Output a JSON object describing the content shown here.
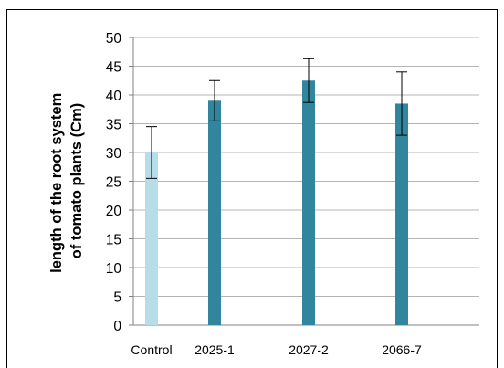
{
  "chart_data": {
    "type": "bar",
    "categories": [
      "Control",
      "2025-1",
      "2027-2",
      "2066-7"
    ],
    "values": [
      30,
      39,
      42.5,
      38.5
    ],
    "error_bars": [
      4.5,
      3.5,
      3.8,
      5.5
    ],
    "colors": [
      "#b7dde8",
      "#31859c",
      "#31859c",
      "#31859c"
    ],
    "ylabel_lines": [
      "length of the root system",
      "of tomato plants (Cm)"
    ],
    "ylim": [
      0,
      50
    ],
    "yticks": [
      0,
      5,
      10,
      15,
      20,
      25,
      30,
      35,
      40,
      45,
      50
    ],
    "grid": true,
    "legend": "none"
  }
}
